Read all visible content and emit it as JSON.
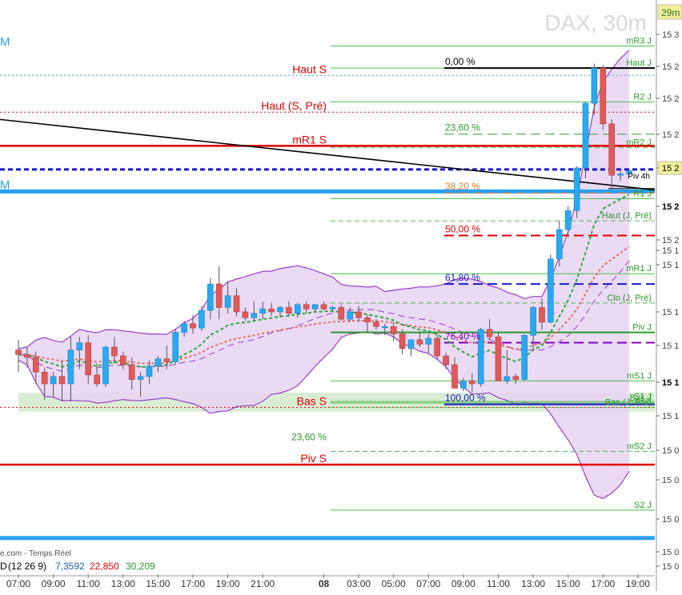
{
  "header": {
    "instrument": "DAX, 30m",
    "timeframe_badge": "29m"
  },
  "footer": {
    "source_text": "e.com - Temps Réel",
    "indicator_prefix": "D",
    "indicator_name": "(12 26 9)",
    "indicator_values": [
      "7,3592",
      "22,850",
      "30,209"
    ],
    "left_edge_labels": [
      "M",
      "M"
    ]
  },
  "colors": {
    "up_candle": "#29a9f0",
    "down_candle": "#e05a5a",
    "bollinger_fill": "#e6d3f2",
    "bollinger_line": "#9a3fc8",
    "support_zone": "#b9dfb0",
    "resistance_red": "#e00000",
    "pivot_green": "#2a9a2a",
    "fibo_blue": "#1a1ac8",
    "fibo_purple": "#8000c0",
    "axis_price_label": "#1a5fb0",
    "current_price_label": "#f2ee9a",
    "mid_blue": "#29a0f0"
  },
  "chart_data": {
    "type": "candlestick",
    "title": "DAX, 30m",
    "x_ticks": [
      {
        "i": 0,
        "label": "07:00"
      },
      {
        "i": 4,
        "label": "09:00"
      },
      {
        "i": 8,
        "label": "11:00"
      },
      {
        "i": 12,
        "label": "13:00"
      },
      {
        "i": 16,
        "label": "15:00"
      },
      {
        "i": 20,
        "label": "17:00"
      },
      {
        "i": 24,
        "label": "19:00"
      },
      {
        "i": 28,
        "label": "21:00"
      },
      {
        "i": 35,
        "label": "08",
        "bold": true
      },
      {
        "i": 39,
        "label": "03:00"
      },
      {
        "i": 43,
        "label": "05:00"
      },
      {
        "i": 47,
        "label": "07:00"
      },
      {
        "i": 51,
        "label": "09:00"
      },
      {
        "i": 55,
        "label": "11:00"
      },
      {
        "i": 59,
        "label": "13:00"
      },
      {
        "i": 63,
        "label": "15:00"
      },
      {
        "i": 67,
        "label": "17:00"
      },
      {
        "i": 71,
        "label": "19:00"
      }
    ],
    "y_tick_labels": [
      "15 3",
      "15 2",
      "15 2",
      "15 2",
      "15 2",
      "15 2",
      "15 2",
      "15 1",
      "15 1",
      "15 1",
      "15 1",
      "15 1",
      "15 1",
      "15 0",
      "15 0",
      "15 0",
      "15 0",
      "15 0"
    ],
    "current_price_label": "15 2",
    "candles": [
      {
        "o": 15083,
        "h": 15090,
        "l": 15068,
        "c": 15080
      },
      {
        "o": 15080,
        "h": 15085,
        "l": 15071,
        "c": 15078
      },
      {
        "o": 15078,
        "h": 15082,
        "l": 15060,
        "c": 15068
      },
      {
        "o": 15068,
        "h": 15071,
        "l": 15049,
        "c": 15060
      },
      {
        "o": 15060,
        "h": 15068,
        "l": 15051,
        "c": 15065
      },
      {
        "o": 15065,
        "h": 15076,
        "l": 15048,
        "c": 15060
      },
      {
        "o": 15060,
        "h": 15092,
        "l": 15048,
        "c": 15083
      },
      {
        "o": 15083,
        "h": 15092,
        "l": 15070,
        "c": 15088
      },
      {
        "o": 15088,
        "h": 15093,
        "l": 15060,
        "c": 15066
      },
      {
        "o": 15066,
        "h": 15074,
        "l": 15058,
        "c": 15060
      },
      {
        "o": 15060,
        "h": 15086,
        "l": 15058,
        "c": 15085
      },
      {
        "o": 15085,
        "h": 15092,
        "l": 15074,
        "c": 15079
      },
      {
        "o": 15079,
        "h": 15082,
        "l": 15070,
        "c": 15073
      },
      {
        "o": 15073,
        "h": 15078,
        "l": 15056,
        "c": 15063
      },
      {
        "o": 15063,
        "h": 15068,
        "l": 15051,
        "c": 15065
      },
      {
        "o": 15065,
        "h": 15076,
        "l": 15060,
        "c": 15072
      },
      {
        "o": 15072,
        "h": 15079,
        "l": 15068,
        "c": 15077
      },
      {
        "o": 15077,
        "h": 15086,
        "l": 15070,
        "c": 15075
      },
      {
        "o": 15075,
        "h": 15097,
        "l": 15073,
        "c": 15095
      },
      {
        "o": 15095,
        "h": 15103,
        "l": 15092,
        "c": 15101
      },
      {
        "o": 15101,
        "h": 15107,
        "l": 15094,
        "c": 15098
      },
      {
        "o": 15098,
        "h": 15113,
        "l": 15096,
        "c": 15110
      },
      {
        "o": 15110,
        "h": 15132,
        "l": 15104,
        "c": 15128
      },
      {
        "o": 15128,
        "h": 15140,
        "l": 15104,
        "c": 15112
      },
      {
        "o": 15112,
        "h": 15130,
        "l": 15108,
        "c": 15120
      },
      {
        "o": 15120,
        "h": 15125,
        "l": 15106,
        "c": 15109
      },
      {
        "o": 15109,
        "h": 15112,
        "l": 15103,
        "c": 15105
      },
      {
        "o": 15105,
        "h": 15116,
        "l": 15103,
        "c": 15108
      },
      {
        "o": 15108,
        "h": 15116,
        "l": 15104,
        "c": 15111
      },
      {
        "o": 15111,
        "h": 15115,
        "l": 15106,
        "c": 15109
      },
      {
        "o": 15109,
        "h": 15113,
        "l": 15105,
        "c": 15112
      },
      {
        "o": 15112,
        "h": 15116,
        "l": 15106,
        "c": 15108
      },
      {
        "o": 15108,
        "h": 15115,
        "l": 15105,
        "c": 15114
      },
      {
        "o": 15114,
        "h": 15116,
        "l": 15108,
        "c": 15111
      },
      {
        "o": 15111,
        "h": 15114,
        "l": 15109,
        "c": 15114
      },
      {
        "o": 15114,
        "h": 15116,
        "l": 15110,
        "c": 15111
      },
      {
        "o": 15111,
        "h": 15113,
        "l": 15109,
        "c": 15112
      },
      {
        "o": 15112,
        "h": 15114,
        "l": 15103,
        "c": 15104
      },
      {
        "o": 15104,
        "h": 15112,
        "l": 15102,
        "c": 15109
      },
      {
        "o": 15109,
        "h": 15113,
        "l": 15102,
        "c": 15105
      },
      {
        "o": 15105,
        "h": 15107,
        "l": 15096,
        "c": 15102
      },
      {
        "o": 15102,
        "h": 15104,
        "l": 15097,
        "c": 15099
      },
      {
        "o": 15099,
        "h": 15101,
        "l": 15093,
        "c": 15099
      },
      {
        "o": 15099,
        "h": 15102,
        "l": 15089,
        "c": 15094
      },
      {
        "o": 15094,
        "h": 15097,
        "l": 15080,
        "c": 15084
      },
      {
        "o": 15084,
        "h": 15090,
        "l": 15079,
        "c": 15090
      },
      {
        "o": 15090,
        "h": 15095,
        "l": 15085,
        "c": 15087
      },
      {
        "o": 15087,
        "h": 15094,
        "l": 15081,
        "c": 15091
      },
      {
        "o": 15091,
        "h": 15094,
        "l": 15077,
        "c": 15079
      },
      {
        "o": 15079,
        "h": 15081,
        "l": 15070,
        "c": 15073
      },
      {
        "o": 15073,
        "h": 15078,
        "l": 15057,
        "c": 15057
      },
      {
        "o": 15057,
        "h": 15064,
        "l": 15055,
        "c": 15062
      },
      {
        "o": 15062,
        "h": 15067,
        "l": 15054,
        "c": 15060
      },
      {
        "o": 15060,
        "h": 15098,
        "l": 15058,
        "c": 15097
      },
      {
        "o": 15097,
        "h": 15104,
        "l": 15090,
        "c": 15092
      },
      {
        "o": 15092,
        "h": 15095,
        "l": 15062,
        "c": 15062
      },
      {
        "o": 15062,
        "h": 15083,
        "l": 15060,
        "c": 15065
      },
      {
        "o": 15065,
        "h": 15067,
        "l": 15060,
        "c": 15063
      },
      {
        "o": 15063,
        "h": 15094,
        "l": 15062,
        "c": 15093
      },
      {
        "o": 15093,
        "h": 15113,
        "l": 15083,
        "c": 15112
      },
      {
        "o": 15112,
        "h": 15118,
        "l": 15097,
        "c": 15102
      },
      {
        "o": 15102,
        "h": 15148,
        "l": 15101,
        "c": 15145
      },
      {
        "o": 15145,
        "h": 15171,
        "l": 15140,
        "c": 15165
      },
      {
        "o": 15165,
        "h": 15181,
        "l": 15162,
        "c": 15178
      },
      {
        "o": 15178,
        "h": 15208,
        "l": 15173,
        "c": 15207
      },
      {
        "o": 15207,
        "h": 15252,
        "l": 15200,
        "c": 15251
      },
      {
        "o": 15251,
        "h": 15278,
        "l": 15243,
        "c": 15275
      },
      {
        "o": 15275,
        "h": 15277,
        "l": 15233,
        "c": 15237
      },
      {
        "o": 15237,
        "h": 15240,
        "l": 15193,
        "c": 15202
      },
      {
        "o": 15202,
        "h": 15206,
        "l": 15198,
        "c": 15203
      },
      {
        "o": 15203,
        "h": 15206,
        "l": 15202,
        "c": 15205
      }
    ],
    "levels": [
      {
        "label": "Haut S",
        "price": 15270,
        "style": "dotted",
        "color": "#3aa0e0",
        "width": 1,
        "start": "left",
        "label_side": "center_left",
        "label_color": "#e00000"
      },
      {
        "label": "Haut (S, Pré)",
        "price": 15245,
        "style": "dotted",
        "color": "#e00000",
        "width": 1,
        "start": "left",
        "label_side": "center_left",
        "label_color": "#e00000"
      },
      {
        "label": "mR1 S",
        "price": 15222,
        "style": "solid",
        "color": "#e00000",
        "width": 2.5,
        "start": "left",
        "label_side": "center_left",
        "label_color": "#e00000"
      },
      {
        "label": "",
        "price": 15206,
        "style": "dashed",
        "color": "#1a1ac8",
        "width": 3,
        "start": "left"
      },
      {
        "label": "",
        "price": 15191,
        "style": "solid",
        "color": "#29a0f0",
        "width": 5,
        "start": "left"
      },
      {
        "label": "Bas S",
        "price": 15044,
        "style": "dotted",
        "color": "#e00000",
        "width": 1,
        "start": "left",
        "label_side": "center_left",
        "label_color": "#e00000"
      },
      {
        "label": "Piv S",
        "price": 15005,
        "style": "solid",
        "color": "#e00000",
        "width": 2.5,
        "start": "left",
        "label_side": "center_left",
        "label_color": "#e00000"
      },
      {
        "label": "",
        "price": 14955,
        "style": "solid",
        "color": "#29a0f0",
        "width": 5,
        "start": "left"
      },
      {
        "label": "mR3 J",
        "price": 15290,
        "style": "solid",
        "color": "#4cbb4c",
        "width": 1,
        "start": "mid",
        "label_side": "right",
        "label_color": "#2a9a2a"
      },
      {
        "label": "Haut J",
        "price": 15275,
        "style": "solid",
        "color": "#4cbb4c",
        "width": 1,
        "start": "mid",
        "label_side": "right",
        "label_color": "#2a9a2a"
      },
      {
        "label": "R2 J",
        "price": 15252,
        "style": "solid",
        "color": "#4cbb4c",
        "width": 1,
        "start": "mid",
        "label_side": "right",
        "label_color": "#2a9a2a"
      },
      {
        "label": "mR2 J",
        "price": 15221,
        "style": "dashed",
        "color": "#4cbb4c",
        "width": 1,
        "start": "mid",
        "label_side": "right",
        "label_color": "#2a9a2a"
      },
      {
        "label": "R1 J",
        "price": 15186,
        "style": "solid",
        "color": "#4cbb4c",
        "width": 1,
        "start": "mid",
        "label_side": "right",
        "label_color": "#2a9a2a"
      },
      {
        "label": "Haut (J, Pré)",
        "price": 15171,
        "style": "dashed",
        "color": "#4cbb4c",
        "width": 1,
        "start": "mid",
        "label_side": "right",
        "label_color": "#2a9a2a"
      },
      {
        "label": "mR1 J",
        "price": 15135,
        "style": "solid",
        "color": "#4cbb4c",
        "width": 1,
        "start": "mid",
        "label_side": "right",
        "label_color": "#2a9a2a"
      },
      {
        "label": "Clo (J, Pré)",
        "price": 15115,
        "style": "dashed",
        "color": "#4cbb4c",
        "width": 1,
        "start": "mid",
        "label_side": "right",
        "label_color": "#2a9a2a"
      },
      {
        "label": "Piv J",
        "price": 15095,
        "style": "solid",
        "color": "#2a9a2a",
        "width": 2,
        "start": "mid",
        "label_side": "right",
        "label_color": "#2a9a2a"
      },
      {
        "label": "mS1 J",
        "price": 15062,
        "style": "solid",
        "color": "#4cbb4c",
        "width": 1,
        "start": "mid",
        "label_side": "right",
        "label_color": "#2a9a2a"
      },
      {
        "label": "S1 J",
        "price": 15048,
        "style": "solid",
        "color": "#4cbb4c",
        "width": 1,
        "start": "mid",
        "label_side": "right",
        "label_color": "#2a9a2a"
      },
      {
        "label": "Bas J",
        "price": 15047,
        "style": "solid",
        "color": "#4cbb4c",
        "width": 1,
        "start": "mid",
        "label_side": "right",
        "label_color": "#2a9a2a"
      },
      {
        "label": "Bas (J, Pré)",
        "price": 15044,
        "style": "dashed",
        "color": "#4cbb4c",
        "width": 1,
        "start": "mid",
        "label_side": "right",
        "label_color": "#2a9a2a"
      },
      {
        "label": "mS2 J",
        "price": 15014,
        "style": "dashed",
        "color": "#4cbb4c",
        "width": 1,
        "start": "mid",
        "label_side": "right",
        "label_color": "#2a9a2a"
      },
      {
        "label": "S2 J",
        "price": 14974,
        "style": "solid",
        "color": "#4cbb4c",
        "width": 1,
        "start": "mid",
        "label_side": "right",
        "label_color": "#2a9a2a"
      }
    ],
    "fibonacci": [
      {
        "label": "0,00 %",
        "price": 15275,
        "color": "#000000",
        "style": "solid",
        "width": 2
      },
      {
        "label": "23,60 %",
        "price": 15230,
        "color": "#2a9a2a",
        "style": "dashed",
        "width": 1
      },
      {
        "label": "38,20 %",
        "price": 15190,
        "color": "#e08030",
        "style": "dashed",
        "width": 1
      },
      {
        "label": "50,00 %",
        "price": 15161,
        "color": "#e00000",
        "style": "dashed",
        "width": 2
      },
      {
        "label": "61,80 %",
        "price": 15128,
        "color": "#1a1ac8",
        "style": "dashed",
        "width": 2
      },
      {
        "label": "76,40 %",
        "price": 15088,
        "color": "#8000c0",
        "style": "dashed",
        "width": 2
      },
      {
        "label": "100,00 %",
        "price": 15046,
        "color": "#1a1ac8",
        "style": "solid",
        "width": 2
      }
    ],
    "extra_labels": [
      {
        "label": "23,60 %",
        "price": 15020,
        "color": "#2a9a2a"
      },
      {
        "label": "Piv 4h",
        "price": 15198,
        "color": "#000000"
      }
    ]
  }
}
